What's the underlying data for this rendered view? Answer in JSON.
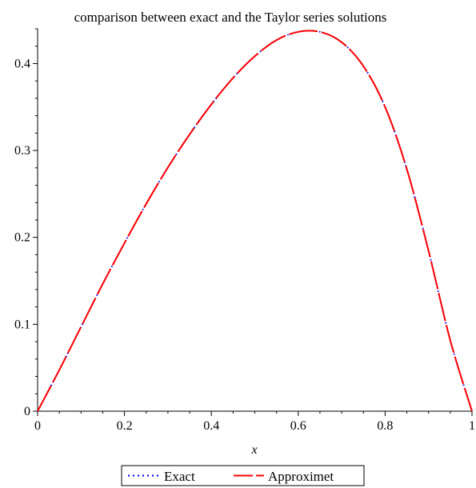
{
  "chart_data": {
    "type": "line",
    "title": "comparison between exact and the Taylor series solutions",
    "xlabel": "x",
    "ylabel": "",
    "xlim": [
      0,
      1
    ],
    "ylim": [
      0,
      0.44
    ],
    "x_ticks": [
      0,
      0.2,
      0.4,
      0.6,
      0.8,
      1
    ],
    "x_tick_labels": [
      "0",
      "0.2",
      "0.4",
      "0.6",
      "0.8",
      "1"
    ],
    "y_ticks": [
      0,
      0.1,
      0.2,
      0.3,
      0.4
    ],
    "y_tick_labels": [
      "0",
      "0.1",
      "0.2",
      "0.3",
      "0.4"
    ],
    "grid": false,
    "legend_position": "bottom",
    "series": [
      {
        "name": "Exact",
        "color": "#0000ff",
        "style": "dotted",
        "x": [
          0,
          0.05,
          0.1,
          0.15,
          0.2,
          0.25,
          0.3,
          0.35,
          0.4,
          0.45,
          0.5,
          0.55,
          0.6,
          0.65,
          0.7,
          0.75,
          0.8,
          0.85,
          0.9,
          0.95,
          1.0
        ],
        "y": [
          0,
          0.0475,
          0.097,
          0.1465,
          0.1935,
          0.2385,
          0.2805,
          0.3185,
          0.353,
          0.3835,
          0.4085,
          0.427,
          0.4365,
          0.4365,
          0.4245,
          0.397,
          0.35,
          0.2785,
          0.1845,
          0.0815,
          0
        ]
      },
      {
        "name": "Approximet",
        "color": "#ff0000",
        "style": "dashed",
        "x": [
          0,
          0.05,
          0.1,
          0.15,
          0.2,
          0.25,
          0.3,
          0.35,
          0.4,
          0.45,
          0.5,
          0.55,
          0.6,
          0.65,
          0.7,
          0.75,
          0.8,
          0.85,
          0.9,
          0.95,
          1.0
        ],
        "y": [
          0,
          0.0475,
          0.097,
          0.1465,
          0.1935,
          0.2385,
          0.2805,
          0.3185,
          0.353,
          0.3835,
          0.4085,
          0.427,
          0.4365,
          0.4365,
          0.4245,
          0.397,
          0.35,
          0.2785,
          0.1845,
          0.0815,
          0
        ]
      }
    ]
  }
}
